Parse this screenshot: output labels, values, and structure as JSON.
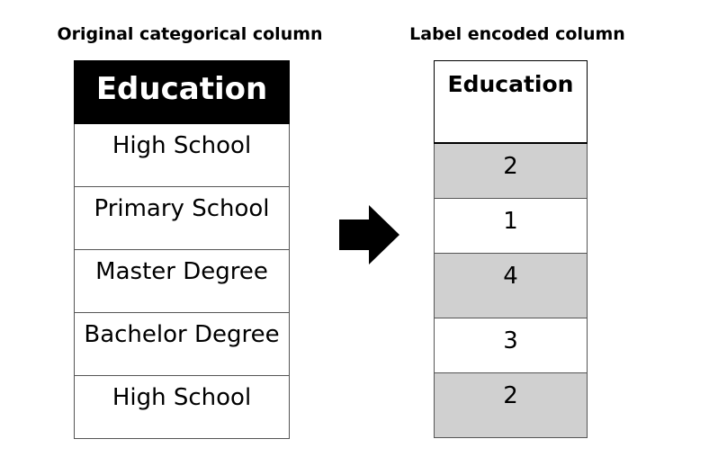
{
  "captions": {
    "left": "Original categorical column",
    "right": "Label encoded column"
  },
  "left_table": {
    "header": "Education",
    "rows": [
      "High School",
      "Primary School",
      "Master Degree",
      "Bachelor Degree",
      "High School"
    ]
  },
  "right_table": {
    "header": "Education",
    "rows": [
      "2",
      "1",
      "4",
      "3",
      "2"
    ]
  },
  "colors": {
    "left_header_bg": "#000000",
    "left_header_text": "#ffffff",
    "shaded_row_bg": "#d0d0d0",
    "arrow": "#000000"
  },
  "icons": {
    "arrow": "right-arrow-icon"
  }
}
